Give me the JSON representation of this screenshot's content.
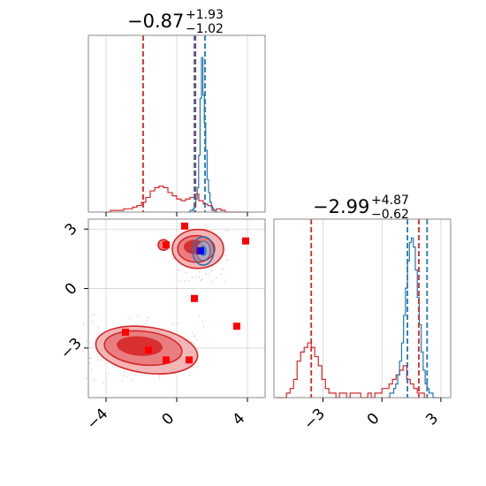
{
  "figure": {
    "type": "corner-plot"
  },
  "colors": {
    "red": "#d62728",
    "blue": "#1f77b4",
    "red_fill": "#e87e80",
    "red_dark": "#d62728",
    "marker": "#ff0000",
    "marker_blue": "#0000ff",
    "scatter_dots": "#e9a6d8"
  },
  "chart_data": [
    {
      "type": "histogram",
      "panel": "param1-marginal",
      "title_value": "−0.87",
      "title_plus": "+1.93",
      "title_minus": "−1.02",
      "xlim": [
        -5,
        5
      ],
      "quantile_lines_red": [
        -1.9,
        1.06
      ],
      "quantile_lines_red_median": -0.87,
      "quantile_lines_blue": [
        1.0,
        1.6
      ],
      "series": [
        {
          "name": "",
          "color": "red",
          "bin_edges_start": -4.0,
          "bin_width": 0.25,
          "counts": [
            0,
            1,
            1,
            1,
            2,
            2,
            3,
            4,
            6,
            9,
            13,
            15,
            16,
            15,
            12,
            10,
            8,
            7,
            8,
            9,
            11,
            7,
            5,
            4,
            1,
            2,
            1,
            0,
            0,
            0,
            0,
            0
          ]
        },
        {
          "name": "",
          "color": "blue",
          "bin_edges_start": 0.6,
          "bin_width": 0.08,
          "counts": [
            0,
            0,
            1,
            1,
            2,
            4,
            8,
            15,
            35,
            70,
            95,
            72,
            55,
            38,
            20,
            12,
            6,
            3,
            2,
            1,
            0,
            0
          ]
        }
      ],
      "ymax": 100
    },
    {
      "type": "histogram",
      "panel": "param2-marginal",
      "title_value": "−2.99",
      "title_plus": "+4.87",
      "title_minus": "−0.62",
      "xlim": [
        -5.5,
        3.5
      ],
      "x_ticks": [
        "−3",
        "0",
        "3"
      ],
      "quantile_lines_red": [
        -3.6,
        1.88
      ],
      "quantile_lines_red_median": -2.99,
      "quantile_lines_blue": [
        1.3,
        2.3
      ],
      "series": [
        {
          "name": "",
          "color": "red",
          "bin_edges_start": -5.4,
          "bin_width": 0.18,
          "counts": [
            0,
            0,
            0,
            1,
            2,
            4,
            8,
            10,
            11,
            12,
            11,
            9,
            7,
            4,
            2,
            1,
            1,
            0,
            1,
            1,
            0,
            1,
            1,
            1,
            0,
            0,
            1,
            0,
            1,
            1,
            2,
            2,
            3,
            4,
            5,
            6,
            7,
            4,
            3,
            2,
            1,
            1,
            0
          ]
        },
        {
          "name": "",
          "color": "blue",
          "bin_edges_start": 0.3,
          "bin_width": 0.1,
          "counts": [
            0,
            1,
            1,
            2,
            3,
            5,
            8,
            12,
            18,
            24,
            30,
            34,
            35,
            33,
            28,
            22,
            16,
            10,
            6,
            3,
            2,
            1,
            1,
            0,
            0,
            0
          ]
        }
      ],
      "ymax": 36
    },
    {
      "type": "contour-scatter",
      "panel": "joint",
      "xlim": [
        -5,
        5
      ],
      "ylim": [
        -5.5,
        3.5
      ],
      "x_ticks": [
        "−4",
        "0",
        "4"
      ],
      "y_ticks": [
        "3",
        "0",
        "−3"
      ],
      "red_markers": [
        [
          0.45,
          3.15
        ],
        [
          -0.6,
          2.2
        ],
        [
          3.9,
          2.4
        ],
        [
          1.0,
          -0.5
        ],
        [
          3.4,
          -1.9
        ],
        [
          -2.9,
          -2.2
        ],
        [
          -1.6,
          -3.1
        ],
        [
          -0.6,
          -3.6
        ],
        [
          0.7,
          -3.6
        ],
        [
          1.3,
          1.9
        ]
      ],
      "blue_markers": [
        [
          1.35,
          1.9
        ]
      ]
    }
  ]
}
